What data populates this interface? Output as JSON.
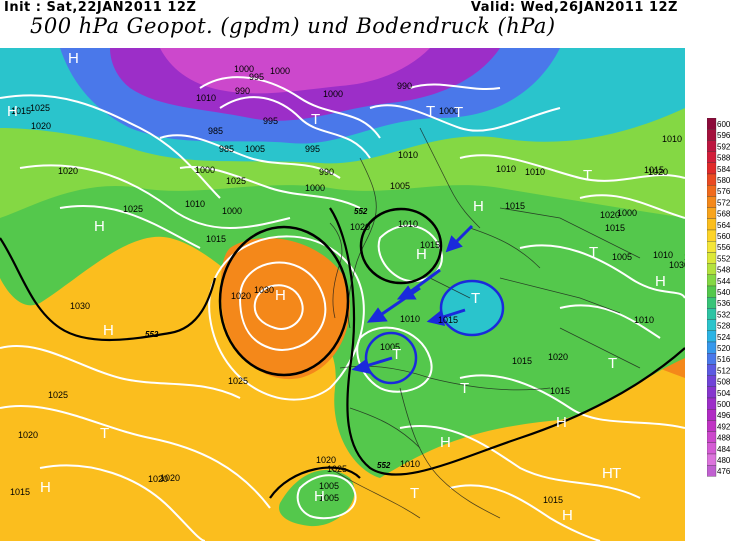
{
  "header": {
    "init": "Init : Sat,22JAN2011 12Z",
    "valid": "Valid: Wed,26JAN2011 12Z",
    "title": "500 hPa Geopot. (gpdm) und Bodendruck (hPa)"
  },
  "colorbar": {
    "levels": [
      "600",
      "596",
      "592",
      "588",
      "584",
      "580",
      "576",
      "572",
      "568",
      "564",
      "560",
      "556",
      "552",
      "548",
      "544",
      "540",
      "536",
      "532",
      "528",
      "524",
      "520",
      "516",
      "512",
      "508",
      "504",
      "500",
      "496",
      "492",
      "488",
      "484",
      "480",
      "476"
    ],
    "colors": [
      "#8c0a3a",
      "#a4103c",
      "#bc1640",
      "#d21e3a",
      "#e02a2a",
      "#ea4a22",
      "#f06a1c",
      "#f4881a",
      "#f8a41c",
      "#fbbe1e",
      "#fdd428",
      "#f4e63a",
      "#dce83a",
      "#b4e23e",
      "#84d844",
      "#54c84c",
      "#38c478",
      "#2ec4a4",
      "#2ac4cc",
      "#2cb4e4",
      "#3698ec",
      "#4a78ea",
      "#5c5ae2",
      "#7044d8",
      "#8636ce",
      "#9c2ec8",
      "#b02ac4",
      "#c034c4",
      "#cc48cc",
      "#d45cd4",
      "#dc74dc",
      "#c060d0"
    ]
  },
  "pressure_labels": [
    "1000",
    "995",
    "1000",
    "990",
    "1000",
    "990",
    "1010",
    "1000",
    "1025",
    "1020",
    "1015",
    "985",
    "995",
    "1005",
    "985",
    "995",
    "1000",
    "1010",
    "1020",
    "1025",
    "1010",
    "1000",
    "990",
    "1000",
    "1010",
    "1005",
    "1015",
    "1010",
    "1020",
    "1015",
    "1015",
    "1020",
    "1025",
    "1030",
    "1020",
    "1030",
    "1025",
    "1020",
    "1025",
    "1010",
    "1015",
    "1005",
    "1010",
    "1015",
    "1015",
    "1020",
    "1020",
    "1025",
    "1010",
    "1005",
    "1015",
    "1015",
    "1020",
    "1000",
    "1005",
    "1005",
    "1010",
    "1015",
    "1010",
    "1010",
    "1015",
    "1020",
    "1020",
    "1005",
    "1030"
  ],
  "height_labels": [
    "552",
    "552",
    "552"
  ],
  "pressure_systems": [
    {
      "symbol": "H"
    },
    {
      "symbol": "T"
    },
    {
      "symbol": "H"
    },
    {
      "symbol": "T"
    },
    {
      "symbol": "T"
    },
    {
      "symbol": "H"
    },
    {
      "symbol": "H"
    },
    {
      "symbol": "H"
    },
    {
      "symbol": "H"
    },
    {
      "symbol": "H"
    },
    {
      "symbol": "T"
    },
    {
      "symbol": "T"
    },
    {
      "symbol": "H"
    },
    {
      "symbol": "T"
    },
    {
      "symbol": "T"
    },
    {
      "symbol": "H"
    },
    {
      "symbol": "T"
    },
    {
      "symbol": "T"
    },
    {
      "symbol": "H"
    },
    {
      "symbol": "T"
    },
    {
      "symbol": "H"
    },
    {
      "symbol": "H"
    },
    {
      "symbol": "H"
    },
    {
      "symbol": "T"
    },
    {
      "symbol": "T"
    },
    {
      "symbol": "H"
    }
  ],
  "annotations": {
    "black_circles": 2,
    "blue_circles": 2,
    "arrows": 5
  }
}
